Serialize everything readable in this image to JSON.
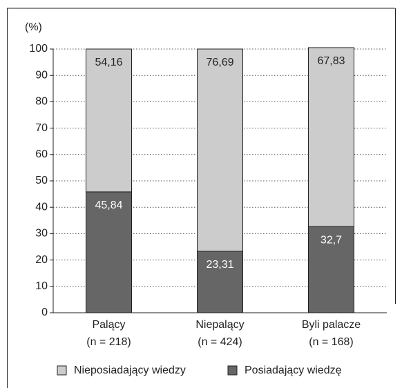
{
  "chart_data": {
    "type": "stacked_bar",
    "y_unit_label": "(%)",
    "categories": [
      "Palący",
      "Niepalący",
      "Byli palacze"
    ],
    "category_notes": [
      "(n = 218)",
      "(n = 424)",
      "(n = 168)"
    ],
    "series": [
      {
        "name": "Posiadający wiedzę",
        "color": "#666666",
        "values": [
          45.84,
          23.31,
          32.7
        ],
        "value_labels": [
          "45,84",
          "23,31",
          "32,7"
        ]
      },
      {
        "name": "Nieposiadający wiedzy",
        "color": "#cccccc",
        "values": [
          54.16,
          76.69,
          67.83
        ],
        "value_labels": [
          "54,16",
          "76,69",
          "67,83"
        ]
      }
    ],
    "ylim": [
      0,
      100
    ],
    "yticks": [
      0,
      10,
      20,
      30,
      40,
      50,
      60,
      70,
      80,
      90,
      100
    ],
    "grid": true,
    "legend": "bottom"
  }
}
